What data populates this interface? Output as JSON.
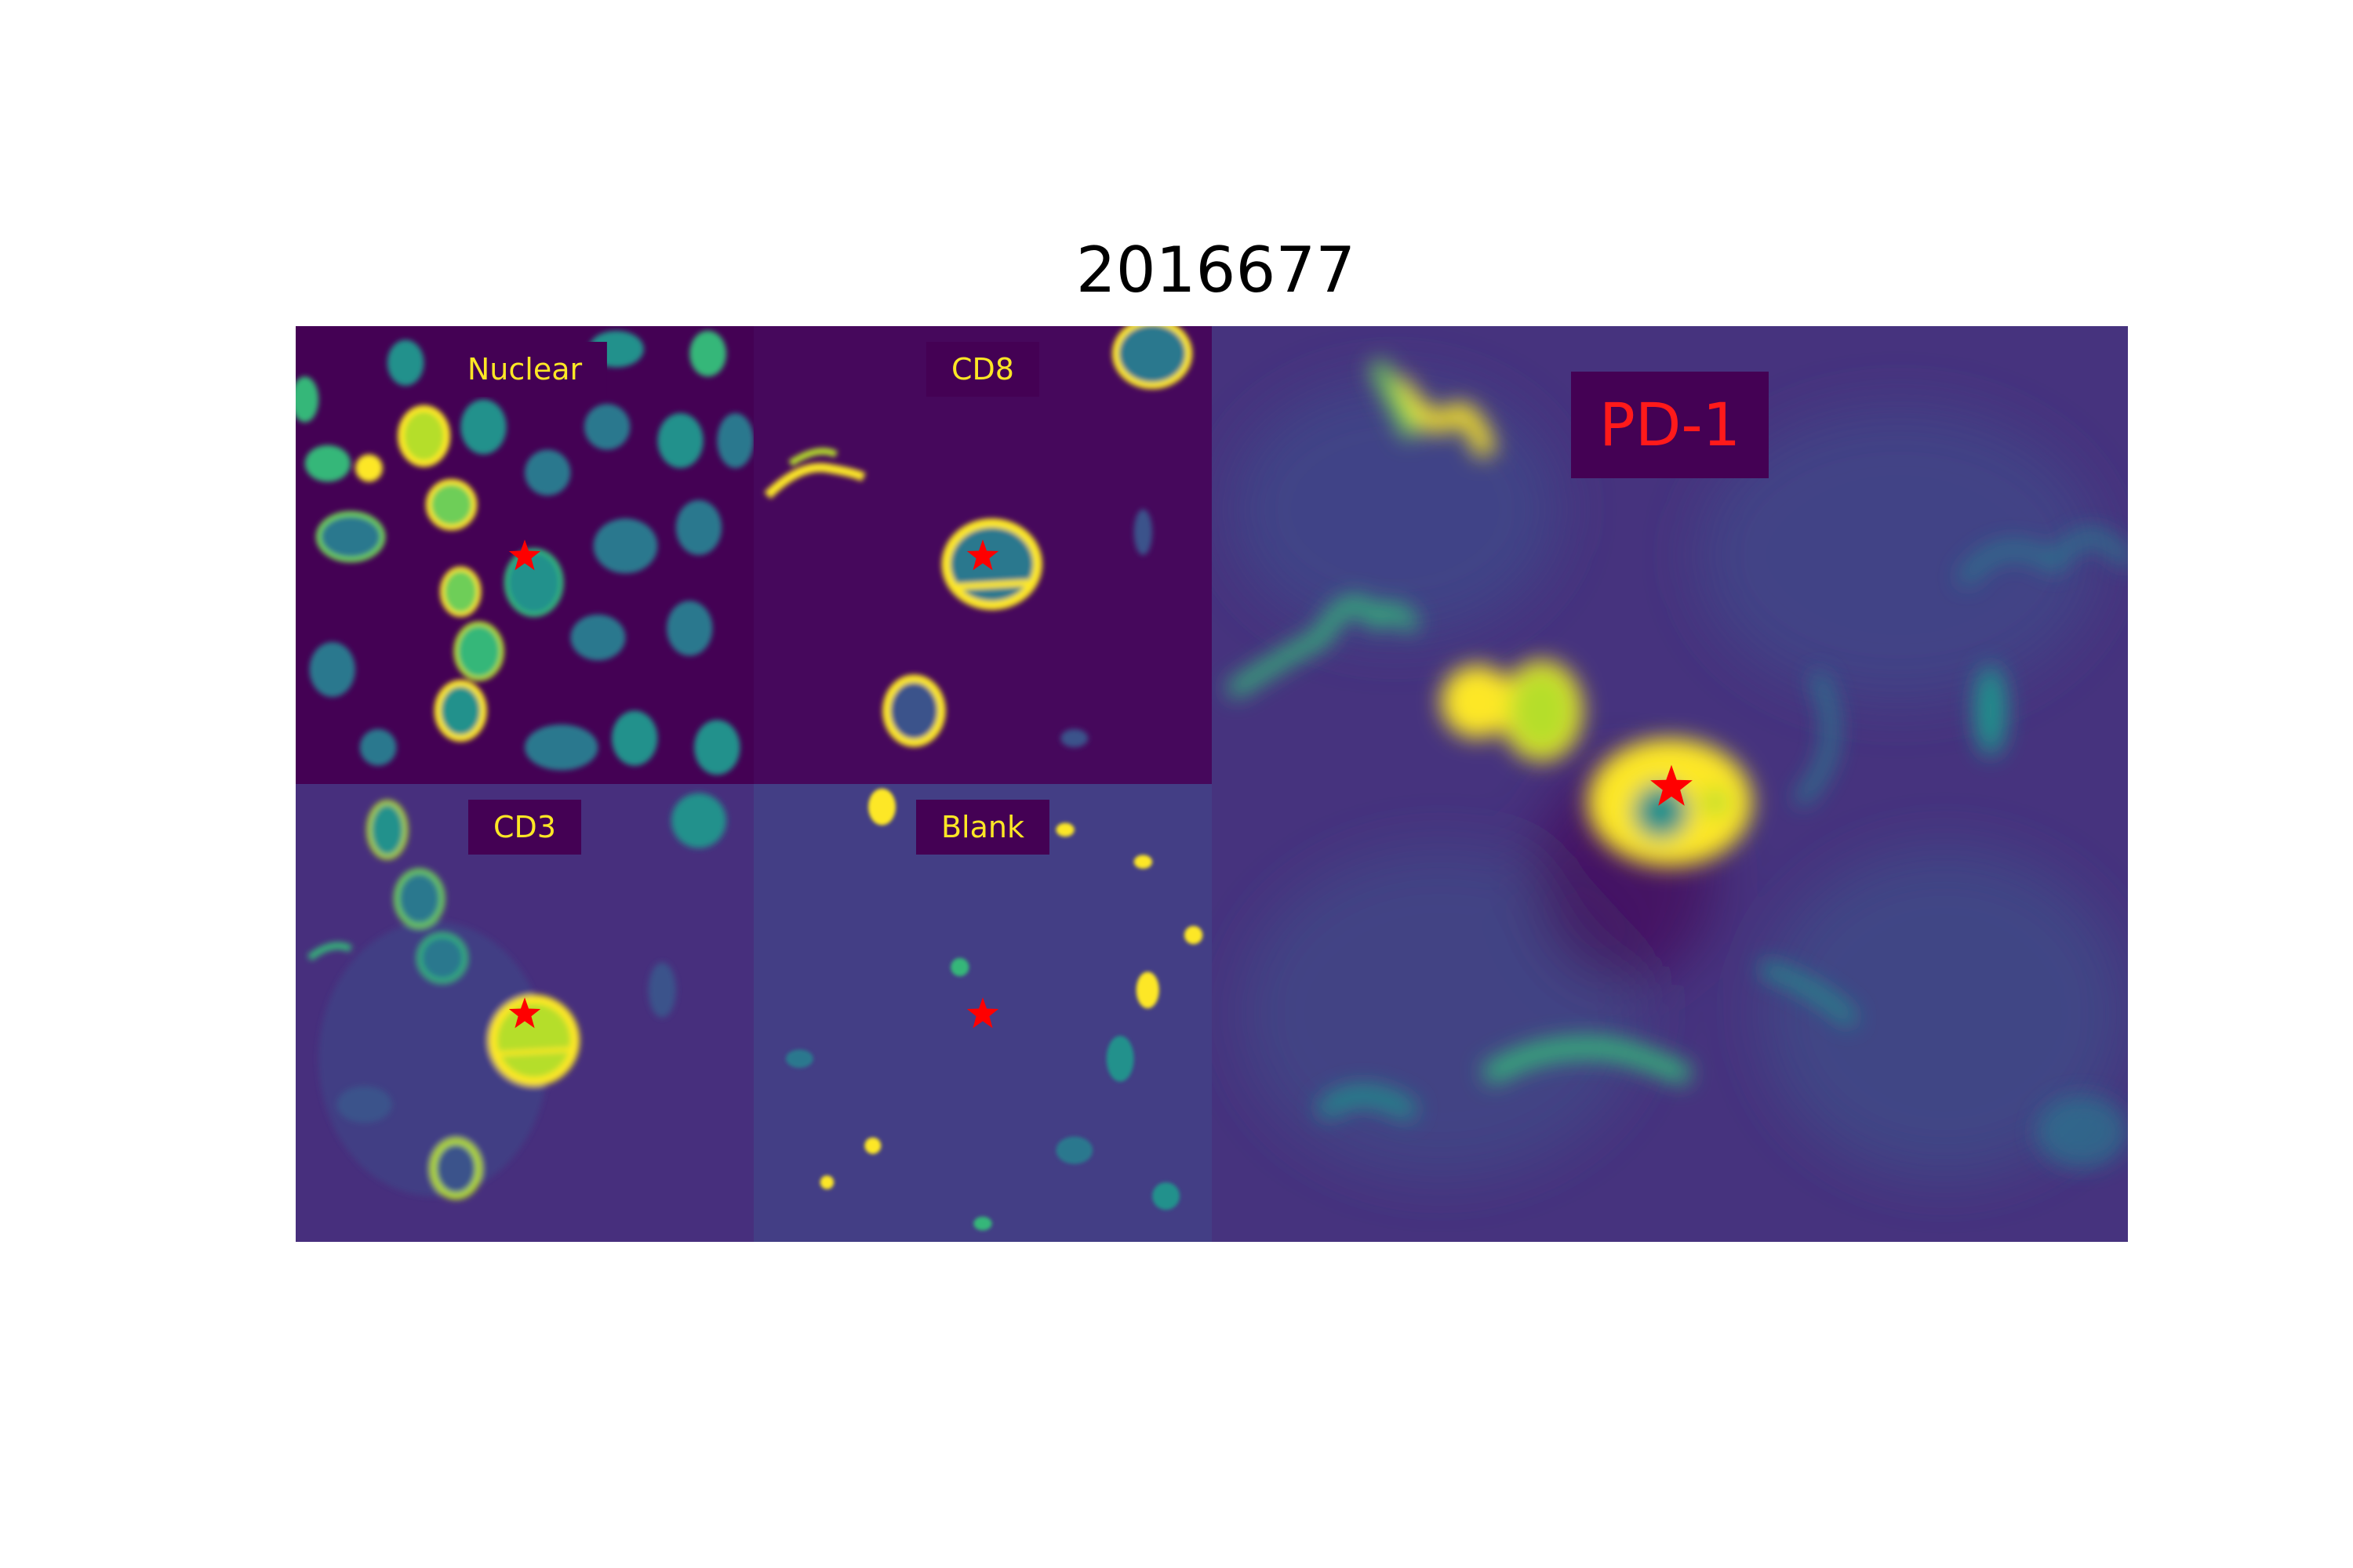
{
  "figure": {
    "title": "2016677"
  },
  "panels": [
    {
      "key": "nuclear",
      "label": "Nuclear",
      "label_color": "#fde725"
    },
    {
      "key": "cd8",
      "label": "CD8",
      "label_color": "#fde725"
    },
    {
      "key": "cd3",
      "label": "CD3",
      "label_color": "#fde725"
    },
    {
      "key": "blank",
      "label": "Blank",
      "label_color": "#fde725"
    },
    {
      "key": "pd1",
      "label": "PD-1",
      "label_color": "#ff1a1a"
    }
  ],
  "colormap": "viridis",
  "marker": {
    "shape": "star-icon",
    "color": "#ff0000"
  }
}
